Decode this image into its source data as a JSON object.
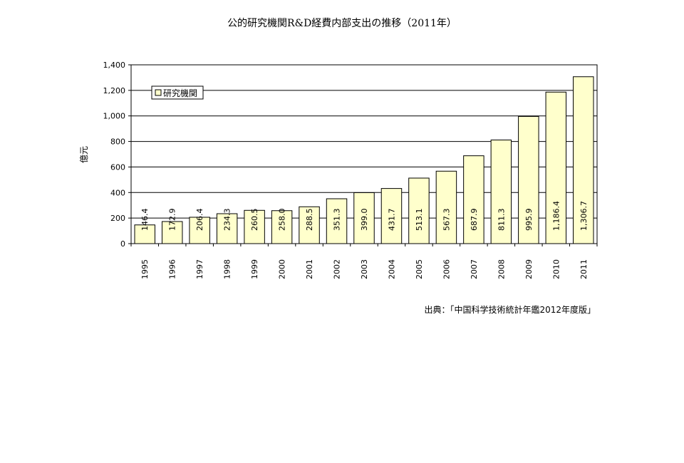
{
  "title": "公的研究機関R&D経費内部支出の推移（2011年）",
  "source": "出典：「中国科学技術統計年鑑2012年度版」",
  "colors": {
    "bar_fill": "#ffffcc",
    "bar_stroke": "#000000",
    "grid": "#000000"
  },
  "chart_data": {
    "type": "bar",
    "title": "公的研究機関R&D経費内部支出の推移（2011年）",
    "xlabel": "",
    "ylabel": "億元",
    "ylim": [
      0,
      1400
    ],
    "yticks": [
      0,
      200,
      400,
      600,
      800,
      1000,
      1200,
      1400
    ],
    "ytick_labels": [
      "0",
      "200",
      "400",
      "600",
      "800",
      "1,000",
      "1,200",
      "1,400"
    ],
    "grid": true,
    "legend": {
      "placement": "top-left",
      "entries": [
        "研究機関"
      ]
    },
    "categories": [
      "1995",
      "1996",
      "1997",
      "1998",
      "1999",
      "2000",
      "2001",
      "2002",
      "2003",
      "2004",
      "2005",
      "2006",
      "2007",
      "2008",
      "2009",
      "2010",
      "2011"
    ],
    "series": [
      {
        "name": "研究機関",
        "values": [
          146.4,
          172.9,
          206.4,
          234.3,
          260.5,
          258.0,
          288.5,
          351.3,
          399.0,
          431.7,
          513.1,
          567.3,
          687.9,
          811.3,
          995.9,
          1186.4,
          1306.7
        ],
        "labels": [
          "146.4",
          "172.9",
          "206.4",
          "234.3",
          "260.5",
          "258.0",
          "288.5",
          "351.3",
          "399.0",
          "431.7",
          "513.1",
          "567.3",
          "687.9",
          "811.3",
          "995.9",
          "1,186.4",
          "1,306.7"
        ]
      }
    ]
  }
}
